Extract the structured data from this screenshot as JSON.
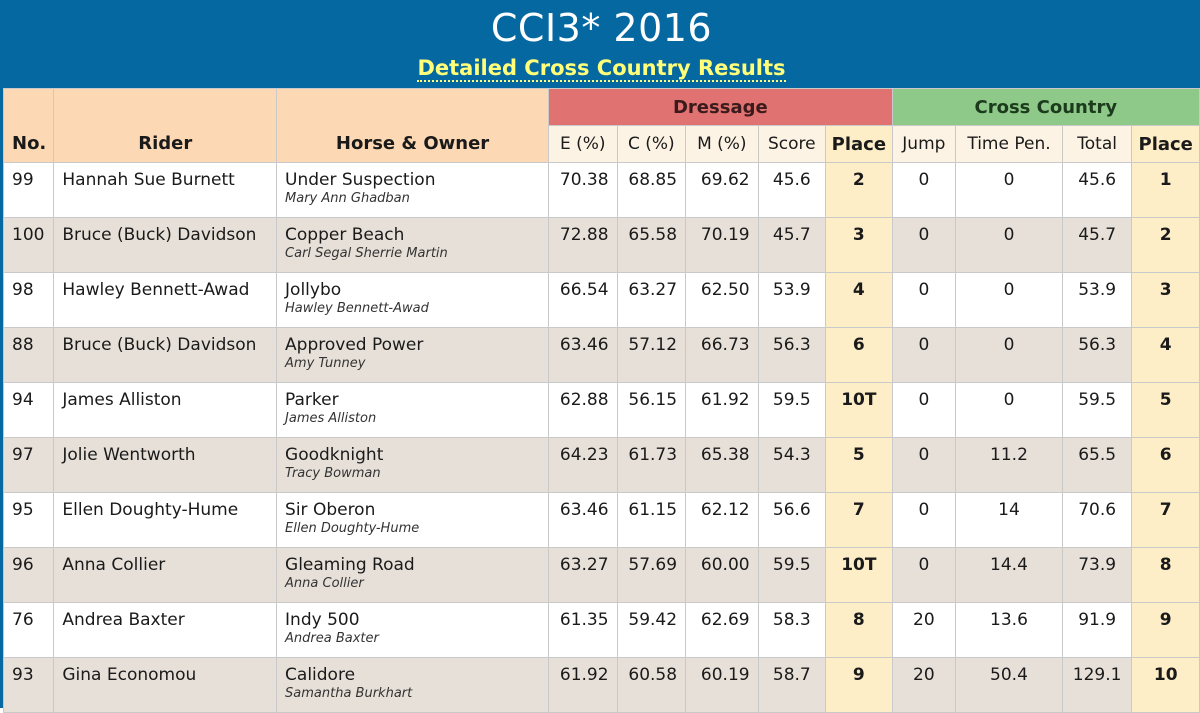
{
  "header": {
    "title": "CCI3* 2016",
    "subtitle": "Detailed Cross Country Results"
  },
  "columns": {
    "no": "No.",
    "rider": "Rider",
    "horse_owner": "Horse & Owner",
    "dressage_group": "Dressage",
    "cross_country_group": "Cross Country",
    "e": "E (%)",
    "c": "C (%)",
    "m": "M (%)",
    "score": "Score",
    "d_place": "Place",
    "jump": "Jump",
    "time_pen": "Time Pen.",
    "total": "Total",
    "xc_place": "Place"
  },
  "rows": [
    {
      "no": "99",
      "rider": "Hannah Sue Burnett",
      "horse": "Under Suspection",
      "owner": "Mary Ann Ghadban",
      "e": "70.38",
      "c": "68.85",
      "m": "69.62",
      "score": "45.6",
      "d_place": "2",
      "jump": "0",
      "time_pen": "0",
      "total": "45.6",
      "xc_place": "1"
    },
    {
      "no": "100",
      "rider": "Bruce (Buck) Davidson",
      "horse": "Copper Beach",
      "owner": "Carl Segal Sherrie Martin",
      "e": "72.88",
      "c": "65.58",
      "m": "70.19",
      "score": "45.7",
      "d_place": "3",
      "jump": "0",
      "time_pen": "0",
      "total": "45.7",
      "xc_place": "2"
    },
    {
      "no": "98",
      "rider": "Hawley Bennett-Awad",
      "horse": "Jollybo",
      "owner": "Hawley Bennett-Awad",
      "e": "66.54",
      "c": "63.27",
      "m": "62.50",
      "score": "53.9",
      "d_place": "4",
      "jump": "0",
      "time_pen": "0",
      "total": "53.9",
      "xc_place": "3"
    },
    {
      "no": "88",
      "rider": "Bruce (Buck) Davidson",
      "horse": "Approved Power",
      "owner": "Amy Tunney",
      "e": "63.46",
      "c": "57.12",
      "m": "66.73",
      "score": "56.3",
      "d_place": "6",
      "jump": "0",
      "time_pen": "0",
      "total": "56.3",
      "xc_place": "4"
    },
    {
      "no": "94",
      "rider": "James Alliston",
      "horse": "Parker",
      "owner": "James Alliston",
      "e": "62.88",
      "c": "56.15",
      "m": "61.92",
      "score": "59.5",
      "d_place": "10T",
      "jump": "0",
      "time_pen": "0",
      "total": "59.5",
      "xc_place": "5"
    },
    {
      "no": "97",
      "rider": "Jolie Wentworth",
      "horse": "Goodknight",
      "owner": "Tracy Bowman",
      "e": "64.23",
      "c": "61.73",
      "m": "65.38",
      "score": "54.3",
      "d_place": "5",
      "jump": "0",
      "time_pen": "11.2",
      "total": "65.5",
      "xc_place": "6"
    },
    {
      "no": "95",
      "rider": "Ellen Doughty-Hume",
      "horse": "Sir Oberon",
      "owner": "Ellen Doughty-Hume",
      "e": "63.46",
      "c": "61.15",
      "m": "62.12",
      "score": "56.6",
      "d_place": "7",
      "jump": "0",
      "time_pen": "14",
      "total": "70.6",
      "xc_place": "7"
    },
    {
      "no": "96",
      "rider": "Anna Collier",
      "horse": "Gleaming Road",
      "owner": "Anna Collier",
      "e": "63.27",
      "c": "57.69",
      "m": "60.00",
      "score": "59.5",
      "d_place": "10T",
      "jump": "0",
      "time_pen": "14.4",
      "total": "73.9",
      "xc_place": "8"
    },
    {
      "no": "76",
      "rider": "Andrea Baxter",
      "horse": "Indy 500",
      "owner": "Andrea Baxter",
      "e": "61.35",
      "c": "59.42",
      "m": "62.69",
      "score": "58.3",
      "d_place": "8",
      "jump": "20",
      "time_pen": "13.6",
      "total": "91.9",
      "xc_place": "9"
    },
    {
      "no": "93",
      "rider": "Gina Economou",
      "horse": "Calidore",
      "owner": "Samantha Burkhart",
      "e": "61.92",
      "c": "60.58",
      "m": "60.19",
      "score": "58.7",
      "d_place": "9",
      "jump": "20",
      "time_pen": "50.4",
      "total": "129.1",
      "xc_place": "10"
    }
  ],
  "colors": {
    "banner": "#0568a0",
    "subtitle": "#ffff7a",
    "dressage_header": "#e07272",
    "cross_country_header": "#8ec98a",
    "header_peach": "#fcd9b4",
    "place_column": "#fdeec8",
    "alt_row": "#e7e0d8"
  }
}
